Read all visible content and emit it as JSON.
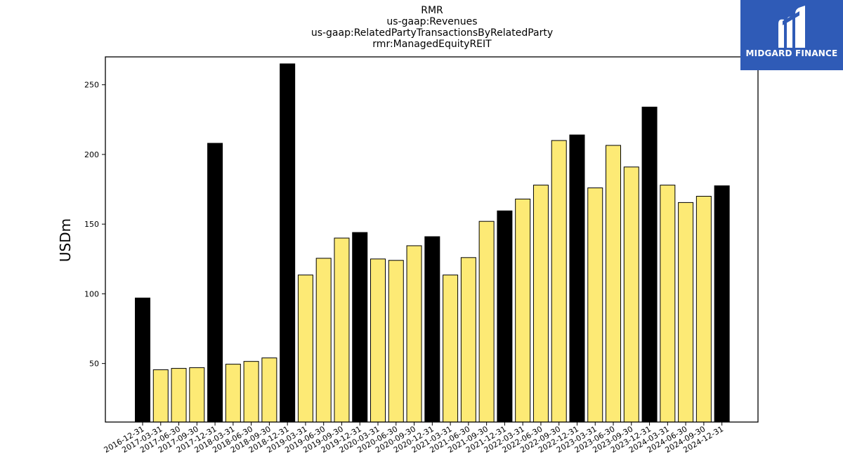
{
  "chart_data": {
    "type": "bar",
    "title_lines": [
      "RMR",
      "us-gaap:Revenues",
      "us-gaap:RelatedPartyTransactionsByRelatedParty",
      "rmr:ManagedEquityREIT"
    ],
    "xlabel": "",
    "ylabel": "USDm",
    "ylim": [
      8,
      270
    ],
    "yticks": [
      50,
      100,
      150,
      200,
      250
    ],
    "grid": false,
    "categories": [
      "2016-12-31",
      "2017-03-31",
      "2017-06-30",
      "2017-09-30",
      "2017-12-31",
      "2018-03-31",
      "2018-06-30",
      "2018-09-30",
      "2018-12-31",
      "2019-03-31",
      "2019-06-30",
      "2019-09-30",
      "2019-12-31",
      "2020-03-31",
      "2020-06-30",
      "2020-09-30",
      "2020-12-31",
      "2021-03-31",
      "2021-06-30",
      "2021-09-30",
      "2021-12-31",
      "2022-03-31",
      "2022-06-30",
      "2022-09-30",
      "2022-12-31",
      "2023-03-31",
      "2023-06-30",
      "2023-09-30",
      "2023-12-31",
      "2024-03-31",
      "2024-06-30",
      "2024-09-30",
      "2024-12-31"
    ],
    "values": [
      97,
      45.5,
      46.5,
      47,
      208,
      49.5,
      51.5,
      54,
      265,
      113.5,
      125.5,
      140,
      144,
      125,
      124,
      134.5,
      141,
      113.5,
      126,
      152,
      159.5,
      168,
      178,
      210,
      214,
      176,
      206.5,
      191,
      234,
      178,
      165.5,
      170,
      177.5
    ],
    "bar_colors": {
      "annual": "#000000",
      "quarterly": "#fdea75"
    },
    "annual_categories": [
      "2016-12-31",
      "2017-12-31",
      "2018-12-31",
      "2019-12-31",
      "2020-12-31",
      "2021-12-31",
      "2022-12-31",
      "2023-12-31",
      "2024-12-31"
    ]
  },
  "logo": {
    "text": "MIDGARD FINANCE",
    "background": "#2f5bb7"
  }
}
